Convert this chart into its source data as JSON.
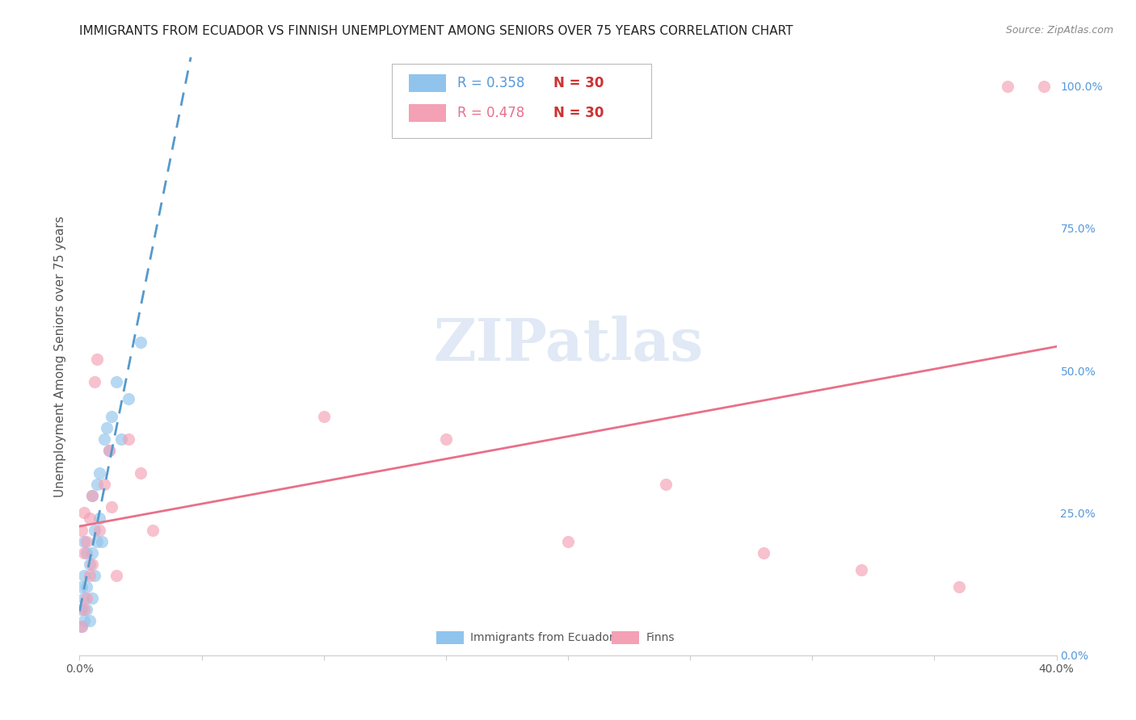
{
  "title": "IMMIGRANTS FROM ECUADOR VS FINNISH UNEMPLOYMENT AMONG SENIORS OVER 75 YEARS CORRELATION CHART",
  "source": "Source: ZipAtlas.com",
  "ylabel": "Unemployment Among Seniors over 75 years",
  "right_yticks": [
    0.0,
    0.25,
    0.5,
    0.75,
    1.0
  ],
  "right_yticklabels": [
    "0.0%",
    "25.0%",
    "50.0%",
    "75.0%",
    "100.0%"
  ],
  "legend_r1": "R = 0.358",
  "legend_n1": "N = 30",
  "legend_r2": "R = 0.478",
  "legend_n2": "N = 30",
  "legend_label1": "Immigrants from Ecuador",
  "legend_label2": "Finns",
  "color_blue": "#90C4EC",
  "color_pink": "#F4A0B5",
  "color_blue_line": "#5599CC",
  "color_pink_line": "#E8708A",
  "ecuador_x": [
    0.001,
    0.001,
    0.001,
    0.002,
    0.002,
    0.002,
    0.002,
    0.003,
    0.003,
    0.003,
    0.004,
    0.004,
    0.005,
    0.005,
    0.005,
    0.006,
    0.006,
    0.007,
    0.007,
    0.008,
    0.008,
    0.009,
    0.01,
    0.011,
    0.012,
    0.013,
    0.015,
    0.017,
    0.02,
    0.025
  ],
  "ecuador_y": [
    0.05,
    0.08,
    0.12,
    0.06,
    0.1,
    0.14,
    0.2,
    0.08,
    0.12,
    0.18,
    0.06,
    0.16,
    0.1,
    0.18,
    0.28,
    0.14,
    0.22,
    0.2,
    0.3,
    0.24,
    0.32,
    0.2,
    0.38,
    0.4,
    0.36,
    0.42,
    0.48,
    0.38,
    0.45,
    0.55
  ],
  "finns_x": [
    0.001,
    0.001,
    0.002,
    0.002,
    0.002,
    0.003,
    0.003,
    0.004,
    0.004,
    0.005,
    0.005,
    0.006,
    0.007,
    0.008,
    0.01,
    0.012,
    0.013,
    0.015,
    0.02,
    0.025,
    0.03,
    0.1,
    0.15,
    0.2,
    0.24,
    0.28,
    0.32,
    0.36,
    0.38,
    0.395
  ],
  "finns_y": [
    0.05,
    0.22,
    0.08,
    0.18,
    0.25,
    0.1,
    0.2,
    0.14,
    0.24,
    0.16,
    0.28,
    0.48,
    0.52,
    0.22,
    0.3,
    0.36,
    0.26,
    0.14,
    0.38,
    0.32,
    0.22,
    0.42,
    0.38,
    0.2,
    0.3,
    0.18,
    0.15,
    0.12,
    1.0,
    1.0
  ],
  "xlim": [
    0.0,
    0.4
  ],
  "ylim": [
    0.0,
    1.05
  ],
  "xtick_positions": [
    0.0,
    0.05,
    0.1,
    0.15,
    0.2,
    0.25,
    0.3,
    0.35,
    0.4
  ],
  "watermark_text": "ZIPatlas",
  "title_fontsize": 11,
  "source_fontsize": 9,
  "scatter_size": 120,
  "scatter_alpha": 0.65
}
